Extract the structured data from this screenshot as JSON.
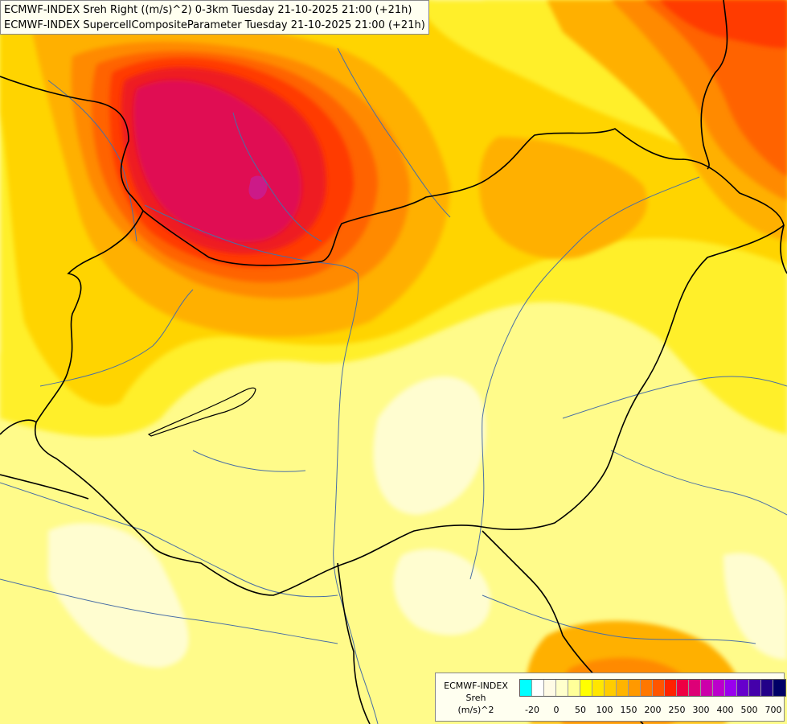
{
  "titles": {
    "line1": "ECMWF-INDEX Sreh Right ((m/s)^2) 0-3km Tuesday 21-10-2025 21:00 (+21h)",
    "line2": "ECMWF-INDEX SupercellCompositeParameter Tuesday 21-10-2025 21:00 (+21h)"
  },
  "legend": {
    "line1": "ECMWF-INDEX",
    "line2": "Sreh",
    "line3": "(m/s)^2",
    "colors": [
      "#00ffff",
      "#ffffff",
      "#fffbe6",
      "#ffffcc",
      "#ffff99",
      "#ffff00",
      "#ffe600",
      "#ffcc00",
      "#ffb400",
      "#ff9900",
      "#ff7700",
      "#ff5500",
      "#ff2200",
      "#ee0044",
      "#dd0077",
      "#cc00aa",
      "#bb00cc",
      "#9900ee",
      "#6600cc",
      "#4400aa",
      "#220088",
      "#000066"
    ],
    "ticks": [
      "-20",
      "0",
      "50",
      "100",
      "150",
      "200",
      "250",
      "300",
      "400",
      "500",
      "700"
    ]
  },
  "palette": {
    "pale": "#fffcc0",
    "yellow": "#ffff66",
    "yellow_deep": "#ffee00",
    "gold": "#ffcc00",
    "orange_light": "#ffb300",
    "orange": "#ff8c00",
    "orange_dark": "#ff6a00",
    "red_orange": "#ff4400",
    "red": "#ee1a1a",
    "crimson": "#e0104f",
    "magenta": "#cc1a88",
    "border": "#000000",
    "river": "#4a6fa5"
  }
}
